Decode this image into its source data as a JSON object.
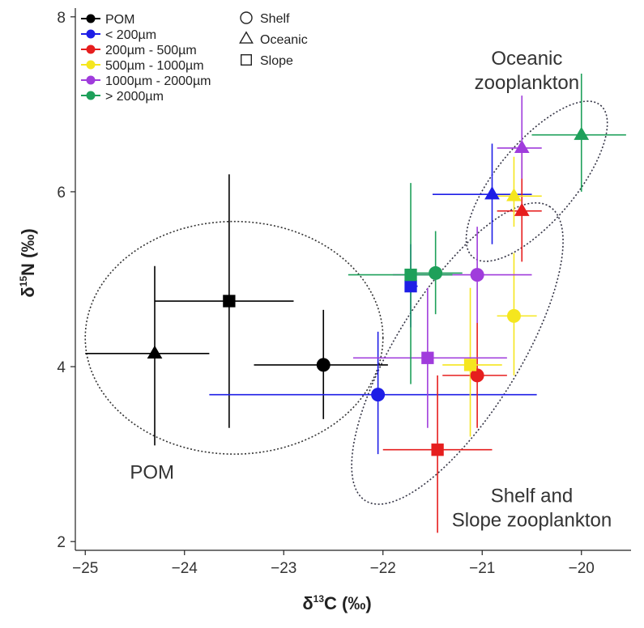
{
  "chart_data": {
    "type": "scatter",
    "title": "",
    "xlabel_base": "δ",
    "xlabel_sup": "13",
    "xlabel_rest": "C (‰)",
    "ylabel_base": "δ",
    "ylabel_sup": "15",
    "ylabel_rest": "N (‰)",
    "xlim": [
      -25.1,
      -19.5
    ],
    "ylim": [
      1.9,
      8.1
    ],
    "xticks": [
      -25,
      -24,
      -23,
      -22,
      -21,
      -20
    ],
    "xtick_labels": [
      "−25",
      "−24",
      "−23",
      "−22",
      "−21",
      "−20"
    ],
    "yticks": [
      2,
      4,
      6,
      8
    ],
    "ytick_labels": [
      "2",
      "4",
      "6",
      "8"
    ],
    "grid": false,
    "legend_position": "top-left",
    "color_legend": [
      {
        "label": "POM",
        "color": "#000000"
      },
      {
        "label": "< 200µm",
        "color": "#1e1ee6"
      },
      {
        "label": "200µm - 500µm",
        "color": "#e61e1e"
      },
      {
        "label": "500µm - 1000µm",
        "color": "#f5e61e"
      },
      {
        "label": "1000µm - 2000µm",
        "color": "#a03cdc"
      },
      {
        "label": "> 2000µm",
        "color": "#1ea05a"
      }
    ],
    "shape_legend": [
      {
        "label": "Shelf",
        "shape": "circle"
      },
      {
        "label": "Oceanic",
        "shape": "triangle"
      },
      {
        "label": "Slope",
        "shape": "square"
      }
    ],
    "series": [
      {
        "name": "POM",
        "color": "#000000",
        "points": [
          {
            "shape": "circle",
            "x": -22.6,
            "y": 4.02,
            "xmin": -23.3,
            "xmax": -21.95,
            "ymin": 3.4,
            "ymax": 4.65
          },
          {
            "shape": "triangle",
            "x": -24.3,
            "y": 4.15,
            "xmin": -25.0,
            "xmax": -23.75,
            "ymin": 3.1,
            "ymax": 5.15
          },
          {
            "shape": "square",
            "x": -23.55,
            "y": 4.75,
            "xmin": -24.3,
            "xmax": -22.9,
            "ymin": 3.3,
            "ymax": 6.2
          }
        ]
      },
      {
        "name": "< 200µm",
        "color": "#1e1ee6",
        "points": [
          {
            "shape": "circle",
            "x": -22.05,
            "y": 3.68,
            "xmin": -23.75,
            "xmax": -20.45,
            "ymin": 3.0,
            "ymax": 4.4
          },
          {
            "shape": "triangle",
            "x": -20.9,
            "y": 5.97,
            "xmin": -21.5,
            "xmax": -20.5,
            "ymin": 5.4,
            "ymax": 6.55
          },
          {
            "shape": "square",
            "x": -21.72,
            "y": 4.92,
            "xmin": -21.75,
            "xmax": -21.65,
            "ymin": 4.45,
            "ymax": 5.4
          }
        ]
      },
      {
        "name": "200µm - 500µm",
        "color": "#e61e1e",
        "points": [
          {
            "shape": "circle",
            "x": -21.05,
            "y": 3.9,
            "xmin": -21.4,
            "xmax": -20.75,
            "ymin": 3.3,
            "ymax": 4.5
          },
          {
            "shape": "triangle",
            "x": -20.6,
            "y": 5.78,
            "xmin": -20.85,
            "xmax": -20.4,
            "ymin": 5.2,
            "ymax": 6.45
          },
          {
            "shape": "square",
            "x": -21.45,
            "y": 3.05,
            "xmin": -22.0,
            "xmax": -20.9,
            "ymin": 2.1,
            "ymax": 3.9
          }
        ]
      },
      {
        "name": "500µm - 1000µm",
        "color": "#f5e61e",
        "points": [
          {
            "shape": "circle",
            "x": -20.68,
            "y": 4.58,
            "xmin": -20.85,
            "xmax": -20.45,
            "ymin": 3.9,
            "ymax": 5.3
          },
          {
            "shape": "triangle",
            "x": -20.68,
            "y": 5.95,
            "xmin": -20.85,
            "xmax": -20.4,
            "ymin": 5.6,
            "ymax": 6.4
          },
          {
            "shape": "square",
            "x": -21.12,
            "y": 4.02,
            "xmin": -21.4,
            "xmax": -20.8,
            "ymin": 3.2,
            "ymax": 4.9
          }
        ]
      },
      {
        "name": "1000µm - 2000µm",
        "color": "#a03cdc",
        "points": [
          {
            "shape": "circle",
            "x": -21.05,
            "y": 5.05,
            "xmin": -21.9,
            "xmax": -20.5,
            "ymin": 4.5,
            "ymax": 5.6
          },
          {
            "shape": "triangle",
            "x": -20.6,
            "y": 6.5,
            "xmin": -20.85,
            "xmax": -20.4,
            "ymin": 6.15,
            "ymax": 7.1
          },
          {
            "shape": "square",
            "x": -21.55,
            "y": 4.1,
            "xmin": -22.3,
            "xmax": -20.75,
            "ymin": 3.3,
            "ymax": 4.9
          }
        ]
      },
      {
        "name": "> 2000µm",
        "color": "#1ea05a",
        "points": [
          {
            "shape": "circle",
            "x": -21.47,
            "y": 5.07,
            "xmin": -21.7,
            "xmax": -21.2,
            "ymin": 4.6,
            "ymax": 5.55
          },
          {
            "shape": "triangle",
            "x": -20.0,
            "y": 6.65,
            "xmin": -20.5,
            "xmax": -19.55,
            "ymin": 6.0,
            "ymax": 7.35
          },
          {
            "shape": "square",
            "x": -21.72,
            "y": 5.05,
            "xmin": -22.35,
            "xmax": -21.3,
            "ymin": 3.8,
            "ymax": 6.1
          }
        ]
      }
    ],
    "ellipses": [
      {
        "name": "POM",
        "cx": -23.5,
        "cy": 4.33,
        "rx": 1.5,
        "ry": 1.33,
        "angle": 0
      },
      {
        "name": "Shelf and Slope zooplankton",
        "cx": -21.25,
        "cy": 4.15,
        "rx": 1.75,
        "ry": 0.7,
        "angle": 58
      },
      {
        "name": "Oceanic zooplankton",
        "cx": -20.45,
        "cy": 6.12,
        "rx": 1.0,
        "ry": 0.45,
        "angle": 50
      }
    ],
    "annotations": [
      {
        "lines": [
          "POM"
        ],
        "anchor": "start",
        "x": -24.55,
        "y": 2.72
      },
      {
        "lines": [
          "Oceanic",
          "zooplankton"
        ],
        "anchor": "middle",
        "x": -20.55,
        "y": 7.45
      },
      {
        "lines": [
          "Shelf and",
          "Slope zooplankton"
        ],
        "anchor": "middle",
        "x": -20.5,
        "y": 2.45
      }
    ]
  }
}
